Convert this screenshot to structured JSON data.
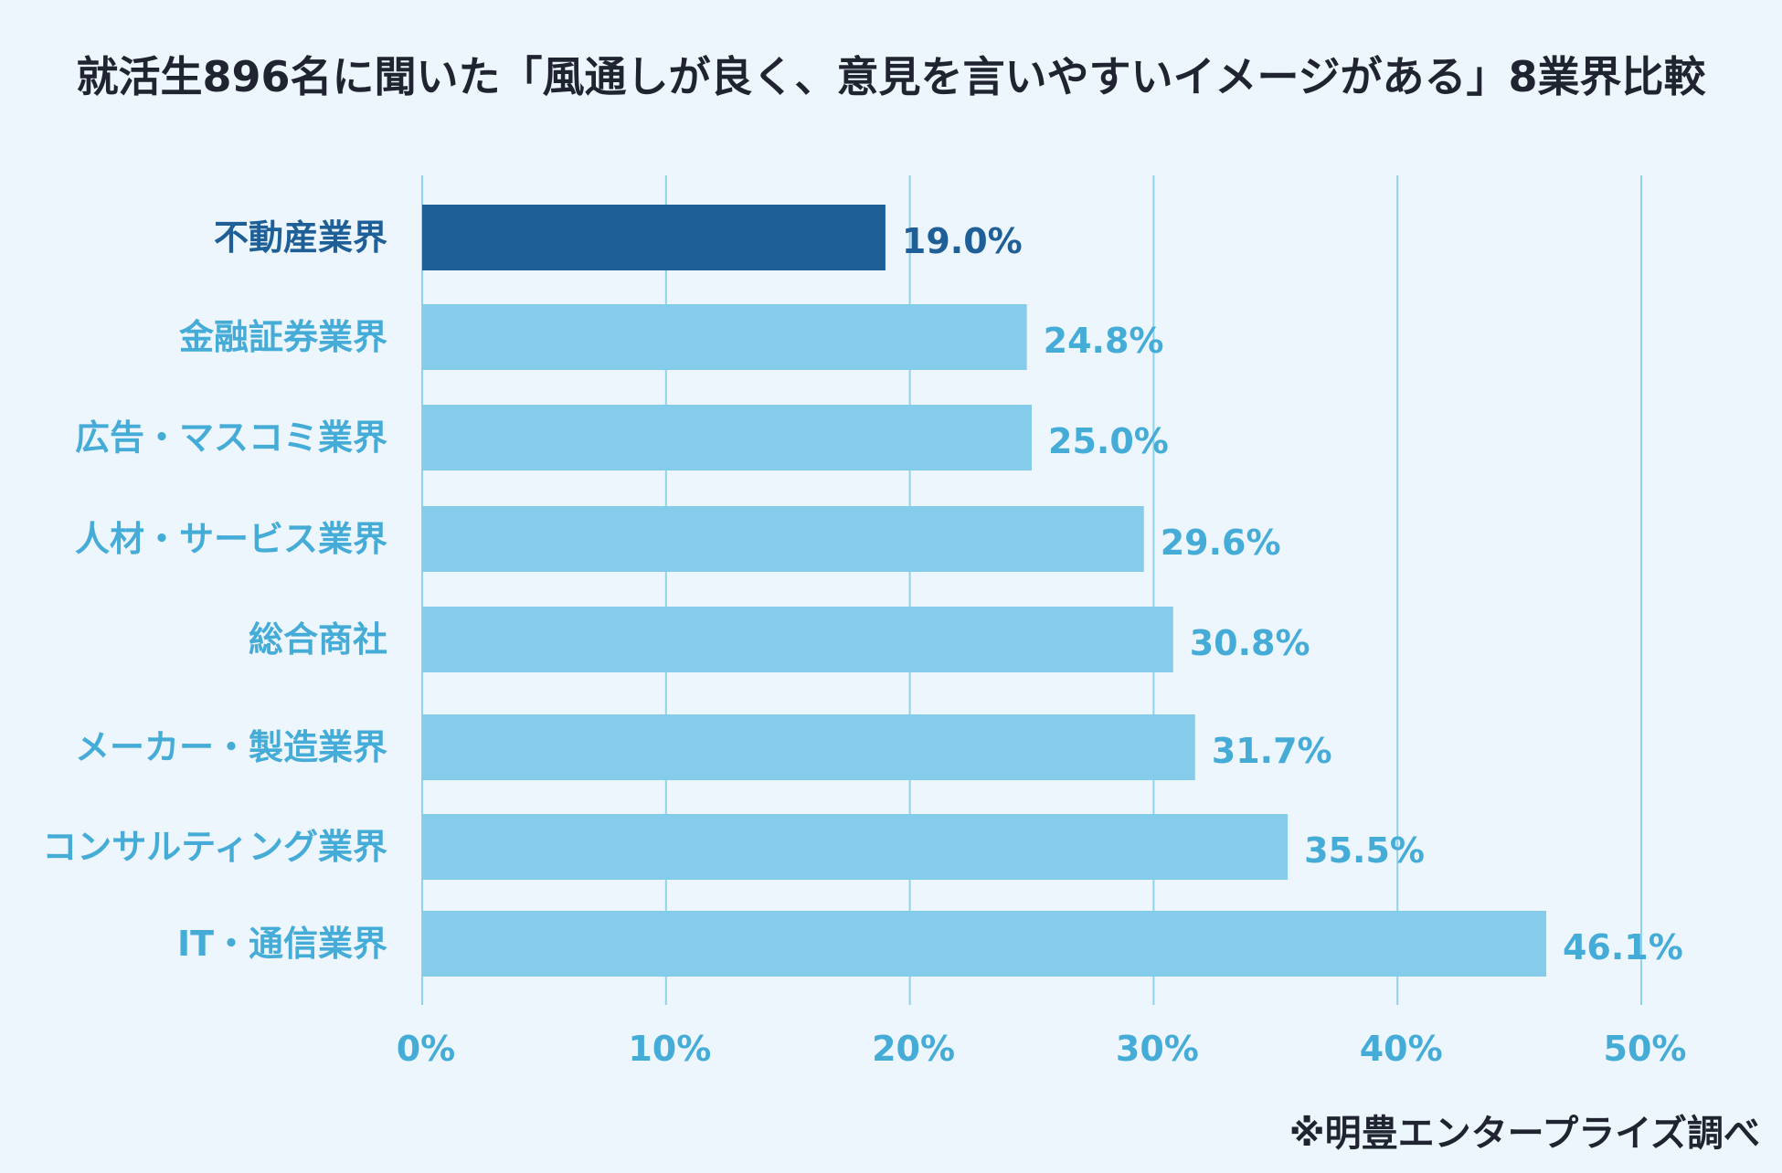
{
  "chart_data": {
    "type": "bar",
    "orientation": "horizontal",
    "title": "就活生896名に聞いた「風通しが良く、意見を言いやすいイメージがある」8業界比較",
    "categories": [
      "不動産業界",
      "金融証券業界",
      "広告・マスコミ業界",
      "人材・サービス業界",
      "総合商社",
      "メーカー・製造業界",
      "コンサルティング業界",
      "IT・通信業界"
    ],
    "values": [
      19.0,
      24.8,
      25.0,
      29.6,
      30.8,
      31.7,
      35.5,
      46.1
    ],
    "value_labels": [
      "19.0%",
      "24.8%",
      "25.0%",
      "29.6%",
      "30.8%",
      "31.7%",
      "35.5%",
      "46.1%"
    ],
    "highlight_category": "不動産業界",
    "xlim": [
      0,
      50
    ],
    "x_ticks": [
      0,
      10,
      20,
      30,
      40,
      50
    ],
    "x_tick_labels": [
      "0%",
      "10%",
      "20%",
      "30%",
      "40%",
      "50%"
    ],
    "xlabel": "",
    "ylabel": "",
    "grid": "vertical",
    "legend": "none",
    "colors": {
      "bar": "#85cbea",
      "highlight_bar": "#1f5f97",
      "label": "#45acd8",
      "highlight_label": "#1f5f97",
      "grid": "#8fd3e8",
      "text_dark": "#1f2430"
    }
  },
  "source": "※明豊エンタープライズ調べ"
}
